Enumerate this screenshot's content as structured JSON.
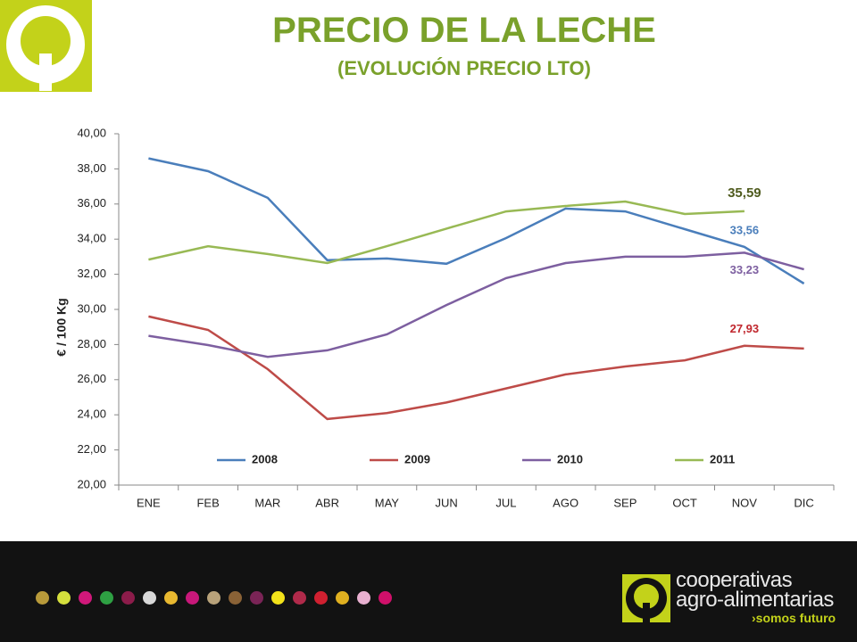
{
  "header": {
    "title": "PRECIO DE LA LECHE",
    "subtitle": "(EVOLUCIÓN PRECIO LTO)"
  },
  "chart_data": {
    "type": "line",
    "y_label": "€ / 100 Kg",
    "categories": [
      "ENE",
      "FEB",
      "MAR",
      "ABR",
      "MAY",
      "JUN",
      "JUL",
      "AGO",
      "SEP",
      "OCT",
      "NOV",
      "DIC"
    ],
    "series": [
      {
        "name": "2008",
        "color": "#4a7ebb",
        "values": [
          38.6,
          37.87,
          36.35,
          32.8,
          32.9,
          32.6,
          34.06,
          35.74,
          35.58,
          34.57,
          33.56,
          31.47
        ],
        "value_labels": [
          null,
          null,
          null,
          null,
          null,
          null,
          null,
          null,
          null,
          null,
          "33,56",
          null
        ]
      },
      {
        "name": "2009",
        "color": "#be4b48",
        "values": [
          29.6,
          28.83,
          26.6,
          23.76,
          24.1,
          24.7,
          25.5,
          26.3,
          26.75,
          27.1,
          27.93,
          27.77
        ],
        "value_labels": [
          null,
          null,
          null,
          null,
          null,
          null,
          null,
          null,
          null,
          null,
          "27,93",
          null
        ]
      },
      {
        "name": "2010",
        "color": "#7d5fa0",
        "values": [
          28.5,
          27.97,
          27.3,
          27.67,
          28.58,
          30.25,
          31.78,
          32.64,
          33.0,
          33.0,
          33.23,
          32.28
        ],
        "value_labels": [
          null,
          null,
          null,
          null,
          null,
          null,
          null,
          null,
          null,
          null,
          "33,23",
          null
        ]
      },
      {
        "name": "2011",
        "color": "#98b954",
        "values": [
          32.84,
          33.6,
          33.15,
          32.64,
          33.6,
          34.6,
          35.58,
          35.89,
          36.14,
          35.43,
          35.59,
          null
        ],
        "value_labels": [
          null,
          null,
          null,
          null,
          null,
          null,
          null,
          null,
          null,
          null,
          "35,59",
          null
        ]
      }
    ],
    "ylim": [
      20,
      40
    ],
    "yticks": [
      {
        "value": 20,
        "label": "20,00"
      },
      {
        "value": 22,
        "label": "22,00"
      },
      {
        "value": 24,
        "label": "24,00"
      },
      {
        "value": 26,
        "label": "26,00"
      },
      {
        "value": 28,
        "label": "28,00"
      },
      {
        "value": 30,
        "label": "30,00"
      },
      {
        "value": 32,
        "label": "32,00"
      },
      {
        "value": 34,
        "label": "34,00"
      },
      {
        "value": 36,
        "label": "36,00"
      },
      {
        "value": 38,
        "label": "38,00"
      },
      {
        "value": 40,
        "label": "40,00"
      }
    ],
    "grid": false,
    "legend": "bottom"
  },
  "footer": {
    "brand_line1": "cooperativas",
    "brand_line2": "agro-alimentarias",
    "slogan": "›somos futuro"
  }
}
